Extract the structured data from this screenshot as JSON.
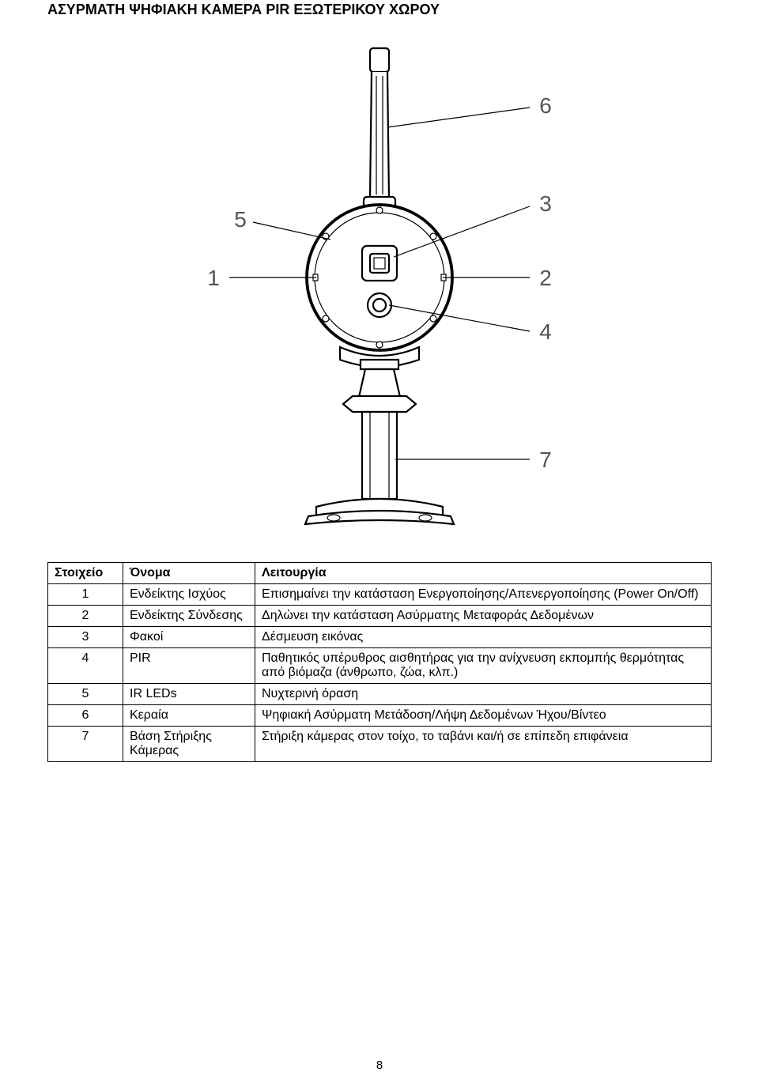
{
  "title": "ΑΣΥΡΜΑΤΗ ΨΗΦΙΑΚΗ ΚΑΜΕΡΑ PIR ΕΞΩΤΕΡΙΚΟΥ ΧΩΡΟΥ",
  "table": {
    "headers": {
      "c0": "Στοιχείο",
      "c1": "Όνομα",
      "c2": "Λειτουργία"
    },
    "rows": [
      {
        "num": "1",
        "name": "Ενδείκτης Ισχύος",
        "func": "Επισημαίνει την κατάσταση Ενεργοποίησης/Απενεργοποίησης (Power On/Off)"
      },
      {
        "num": "2",
        "name": "Ενδείκτης Σύνδεσης",
        "func": "Δηλώνει την κατάσταση Ασύρματης Μεταφοράς Δεδομένων"
      },
      {
        "num": "3",
        "name": "Φακοί",
        "func": "Δέσμευση εικόνας"
      },
      {
        "num": "4",
        "name": "PIR",
        "func": "Παθητικός υπέρυθρος αισθητήρας για την ανίχνευση εκπομπής θερμότητας από βιόμαζα (άνθρωπο, ζώα, κλπ.)"
      },
      {
        "num": "5",
        "name": "IR LEDs",
        "func": "Νυχτερινή όραση"
      },
      {
        "num": "6",
        "name": "Κεραία",
        "func": "Ψηφιακή Ασύρματη Μετάδοση/Λήψη Δεδομένων Ήχου/Βίντεο"
      },
      {
        "num": "7",
        "name": "Βάση Στήριξης Κάμερας",
        "func": "Στήριξη κάμερας στον τοίχο, το ταβάνι και/ή σε επίπεδη επιφάνεια"
      }
    ]
  },
  "diagram": {
    "callouts": {
      "c1": "1",
      "c2": "2",
      "c3": "3",
      "c4": "4",
      "c5": "5",
      "c6": "6",
      "c7": "7"
    },
    "colors": {
      "stroke": "#000000",
      "fill_bg": "#ffffff",
      "callout_font": "#555555"
    },
    "stroke_widths": {
      "thin": 1.2,
      "med": 2.2,
      "thick": 3.8
    },
    "font_size_callout": 28
  },
  "page_number": "8"
}
